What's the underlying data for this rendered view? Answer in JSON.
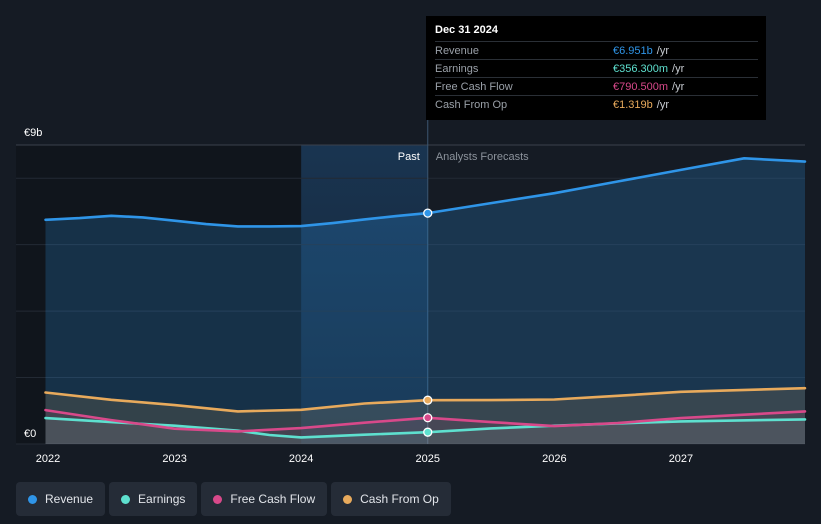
{
  "tooltip": {
    "date": "Dec 31 2024",
    "rows": [
      {
        "label": "Revenue",
        "value": "€6.951b",
        "unit": "/yr",
        "color": "#2f95e8"
      },
      {
        "label": "Earnings",
        "value": "€356.300m",
        "unit": "/yr",
        "color": "#5ee0cf"
      },
      {
        "label": "Free Cash Flow",
        "value": "€790.500m",
        "unit": "/yr",
        "color": "#d8498a"
      },
      {
        "label": "Cash From Op",
        "value": "€1.319b",
        "unit": "/yr",
        "color": "#e8aa5c"
      }
    ]
  },
  "legend": [
    {
      "label": "Revenue",
      "color": "#2f95e8"
    },
    {
      "label": "Earnings",
      "color": "#5ee0cf"
    },
    {
      "label": "Free Cash Flow",
      "color": "#d8498a"
    },
    {
      "label": "Cash From Op",
      "color": "#e8aa5c"
    }
  ],
  "chart_data": {
    "type": "line",
    "y_unit": "€b",
    "ylim": [
      0,
      9
    ],
    "xlim": [
      2022.0,
      2027.98
    ],
    "y_labels": [
      {
        "value": 9,
        "text": "€9b"
      },
      {
        "value": 0,
        "text": "€0"
      }
    ],
    "x_ticks": [
      {
        "value": 2022,
        "text": "2022"
      },
      {
        "value": 2023,
        "text": "2023"
      },
      {
        "value": 2024,
        "text": "2024"
      },
      {
        "value": 2025,
        "text": "2025"
      },
      {
        "value": 2026,
        "text": "2026"
      },
      {
        "value": 2027,
        "text": "2027"
      }
    ],
    "past_label": "Past",
    "forecast_label": "Analysts Forecasts",
    "divider_x": 2025.0,
    "highlight_start": 2024.0,
    "series": [
      {
        "name": "Revenue",
        "color": "#2f95e8",
        "marker_x": 2025.0,
        "points": [
          [
            2021.98,
            6.75
          ],
          [
            2022.25,
            6.8
          ],
          [
            2022.5,
            6.87
          ],
          [
            2022.75,
            6.82
          ],
          [
            2023.0,
            6.72
          ],
          [
            2023.25,
            6.62
          ],
          [
            2023.5,
            6.55
          ],
          [
            2023.75,
            6.55
          ],
          [
            2024.0,
            6.56
          ],
          [
            2024.25,
            6.65
          ],
          [
            2024.5,
            6.76
          ],
          [
            2024.75,
            6.86
          ],
          [
            2025.0,
            6.95
          ],
          [
            2025.5,
            7.25
          ],
          [
            2026.0,
            7.55
          ],
          [
            2026.5,
            7.9
          ],
          [
            2027.0,
            8.25
          ],
          [
            2027.5,
            8.6
          ],
          [
            2027.98,
            8.5
          ]
        ]
      },
      {
        "name": "Earnings",
        "color": "#5ee0cf",
        "marker_x": 2025.0,
        "points": [
          [
            2021.98,
            0.78
          ],
          [
            2022.5,
            0.66
          ],
          [
            2023.0,
            0.55
          ],
          [
            2023.5,
            0.4
          ],
          [
            2023.75,
            0.27
          ],
          [
            2024.0,
            0.2
          ],
          [
            2024.5,
            0.28
          ],
          [
            2025.0,
            0.356
          ],
          [
            2025.5,
            0.47
          ],
          [
            2026.0,
            0.55
          ],
          [
            2026.5,
            0.62
          ],
          [
            2027.0,
            0.68
          ],
          [
            2027.98,
            0.74
          ]
        ]
      },
      {
        "name": "Free Cash Flow",
        "color": "#d8498a",
        "marker_x": 2025.0,
        "points": [
          [
            2021.98,
            1.02
          ],
          [
            2022.5,
            0.72
          ],
          [
            2023.0,
            0.46
          ],
          [
            2023.5,
            0.38
          ],
          [
            2024.0,
            0.48
          ],
          [
            2024.5,
            0.64
          ],
          [
            2025.0,
            0.79
          ],
          [
            2025.5,
            0.66
          ],
          [
            2026.0,
            0.54
          ],
          [
            2026.5,
            0.63
          ],
          [
            2027.0,
            0.78
          ],
          [
            2027.98,
            0.98
          ]
        ]
      },
      {
        "name": "Cash From Op",
        "color": "#e8aa5c",
        "marker_x": 2025.0,
        "points": [
          [
            2021.98,
            1.55
          ],
          [
            2022.5,
            1.33
          ],
          [
            2023.0,
            1.17
          ],
          [
            2023.5,
            0.98
          ],
          [
            2024.0,
            1.03
          ],
          [
            2024.5,
            1.22
          ],
          [
            2025.0,
            1.319
          ],
          [
            2025.5,
            1.32
          ],
          [
            2026.0,
            1.34
          ],
          [
            2026.5,
            1.45
          ],
          [
            2027.0,
            1.57
          ],
          [
            2027.98,
            1.68
          ]
        ]
      }
    ]
  }
}
